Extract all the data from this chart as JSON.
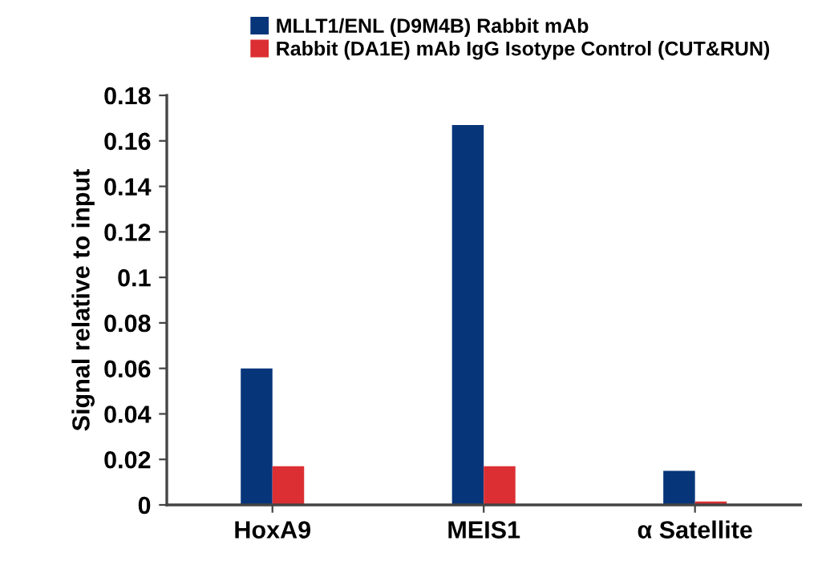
{
  "chart_data": {
    "type": "bar",
    "ylabel": "Signal relative to input",
    "categories": [
      "HoxA9",
      "MEIS1",
      "α Satellite"
    ],
    "series": [
      {
        "name": "MLLT1/ENL (D9M4B) Rabbit mAb",
        "color": "#06357a",
        "values": [
          0.06,
          0.167,
          0.015
        ]
      },
      {
        "name": "Rabbit (DA1E) mAb IgG Isotype Control (CUT&RUN)",
        "color": "#dc2f33",
        "values": [
          0.017,
          0.017,
          0.0015
        ]
      }
    ],
    "ylim": [
      0,
      0.18
    ],
    "yticks": [
      0,
      0.02,
      0.04,
      0.06,
      0.08,
      0.1,
      0.12,
      0.14,
      0.16,
      0.18
    ],
    "grid": false,
    "legend": "top left"
  }
}
